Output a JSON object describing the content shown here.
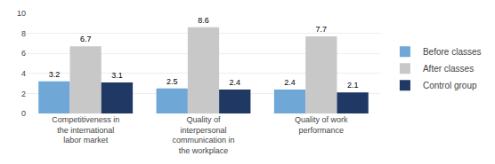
{
  "chart_data": {
    "type": "bar",
    "categories": [
      "Competitiveness in\nthe international\nlabor market",
      "Quality of\ninterpersonal\ncommunication in\nthe workplace",
      "Quality of work\nperformance"
    ],
    "series": [
      {
        "name": "Before classes",
        "color": "#6fa8d6",
        "values": [
          3.2,
          2.5,
          2.4
        ]
      },
      {
        "name": "After classes",
        "color": "#C8C8C8",
        "values": [
          6.7,
          8.6,
          7.7
        ]
      },
      {
        "name": "Control group",
        "color": "#1F3864",
        "values": [
          3.1,
          2.4,
          2.1
        ]
      }
    ],
    "ylim": [
      0,
      10
    ],
    "yticks": [
      0,
      2,
      4,
      6,
      8,
      10
    ],
    "grid": true,
    "legend": "right",
    "data_labels": true
  }
}
